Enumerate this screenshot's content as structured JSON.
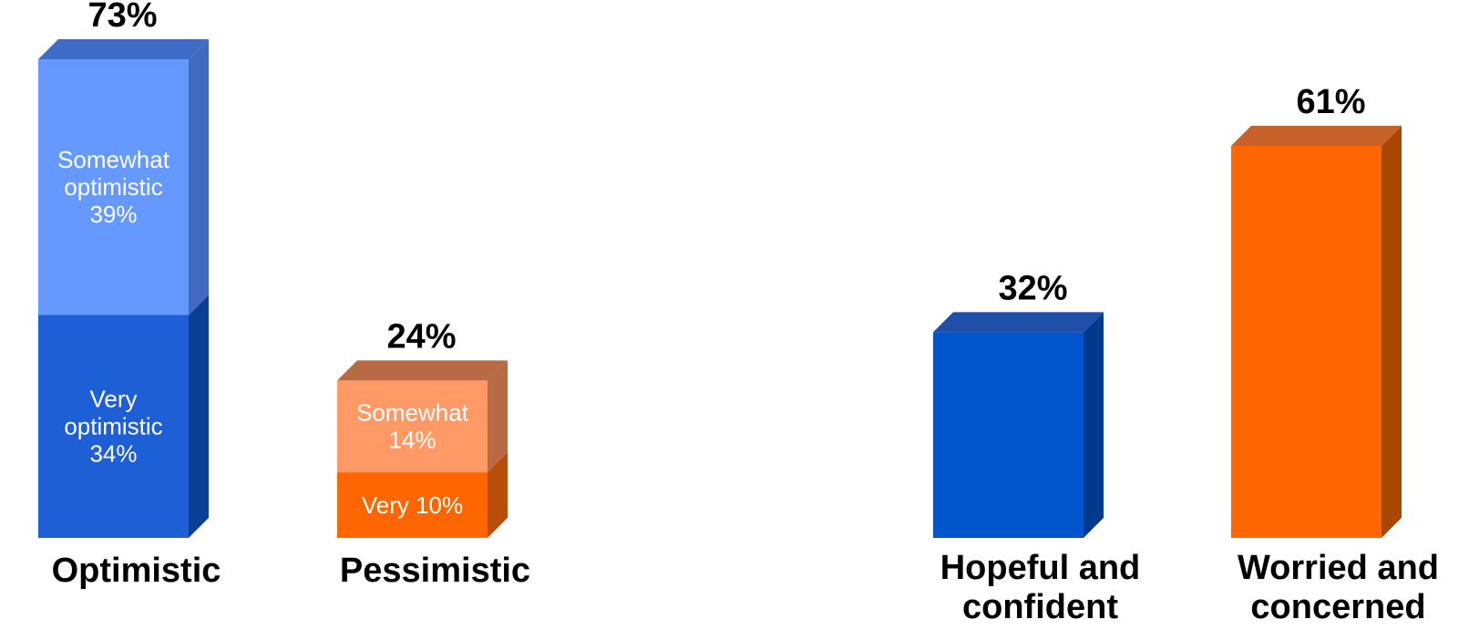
{
  "chart_data": [
    {
      "type": "bar",
      "stacked": true,
      "categories": [
        [
          "Optimistic"
        ],
        [
          "Pessimistic"
        ]
      ],
      "totals": [
        "73%",
        "24%"
      ],
      "bars": [
        {
          "segments": [
            {
              "value": 34,
              "lines": [
                "Very",
                "optimistic",
                "34%"
              ],
              "front": "#1F5FD6",
              "top": "#3E70CC",
              "side": "#0B3E95"
            },
            {
              "value": 39,
              "lines": [
                "Somewhat",
                "optimistic",
                "39%"
              ],
              "front": "#6699FF",
              "top": "#3E6AC8",
              "side": "#4169C0"
            }
          ]
        },
        {
          "segments": [
            {
              "value": 10,
              "lines": [
                "Very   10%"
              ],
              "front": "#FF6600",
              "top": "#C8602A",
              "side": "#B84E0A"
            },
            {
              "value": 14,
              "lines": [
                "Somewhat",
                "14%"
              ],
              "front": "#FF9966",
              "top": "#B86A45",
              "side": "#B86A45"
            }
          ]
        }
      ],
      "ylim": [
        0,
        80
      ]
    },
    {
      "type": "bar",
      "categories": [
        [
          "Hopeful and",
          "confident"
        ],
        [
          "Worried and",
          "concerned"
        ]
      ],
      "values": [
        32,
        61
      ],
      "totals": [
        "32%",
        "61%"
      ],
      "colors": [
        {
          "front": "#0055CC",
          "top": "#1F4FA8",
          "side": "#003A8C"
        },
        {
          "front": "#FF6600",
          "top": "#C8602A",
          "side": "#A84800"
        }
      ],
      "ylim": [
        0,
        66
      ]
    }
  ]
}
